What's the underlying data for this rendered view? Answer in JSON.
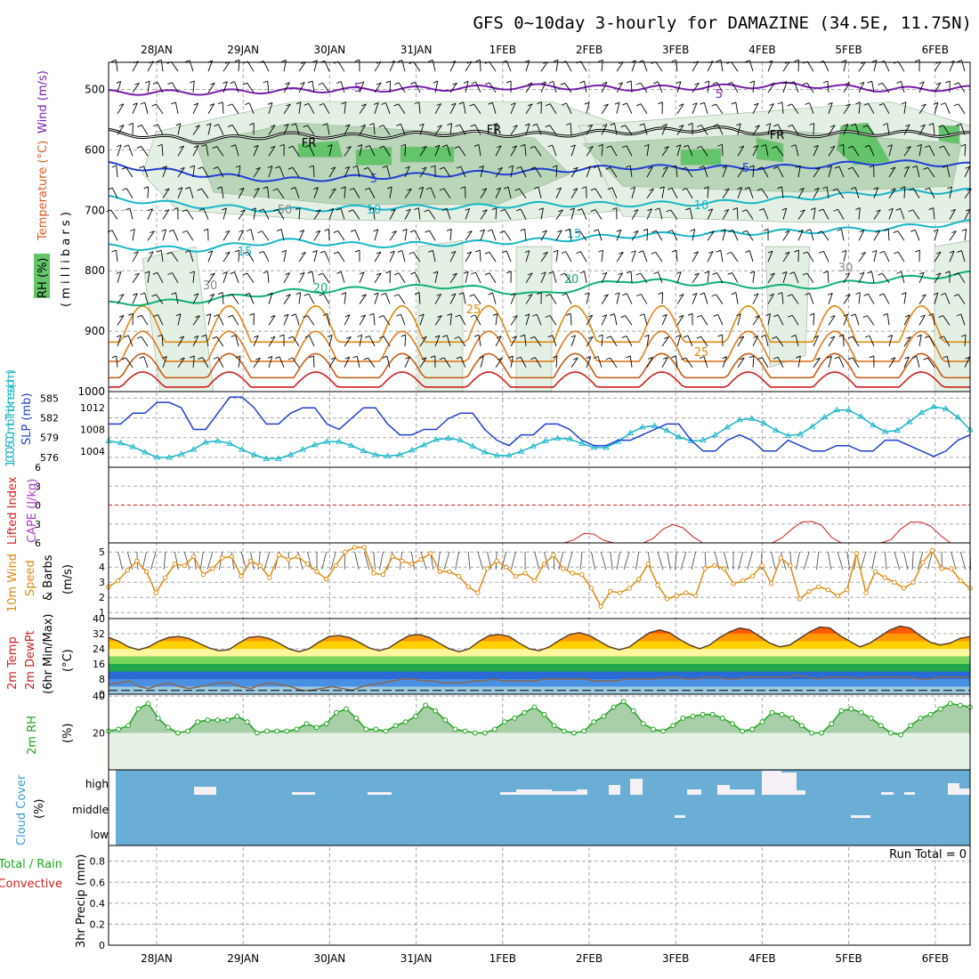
{
  "title": "GFS 0~10day 3-hourly for DAMAZINE (34.5E, 11.75N)",
  "dates": [
    "28JAN",
    "29JAN",
    "30JAN",
    "31JAN",
    "1FEB",
    "2FEB",
    "3FEB",
    "4FEB",
    "5FEB",
    "6FEB"
  ],
  "colors": {
    "purple": "#7a1fb0",
    "blue": "#1f3fd6",
    "cyan": "#17b6c9",
    "teal": "#10b07a",
    "orange": "#e08a10",
    "red": "#d21f1f",
    "rh_light": "#e3f0e3",
    "rh_mid": "#b9d6b9",
    "rh_dark": "#63c46a",
    "cloud": "#6aaed6",
    "grid": "#a8a8a8"
  },
  "labels": {
    "rh_axis": "RH (%)",
    "temp_axis": "Temperature (°C)",
    "wind_axis": "Wind (m/s)",
    "millibars": "( m i l l i b a r s )",
    "thickness": "1000-500mb Thickness (dm)",
    "slp": "SLP (mb)",
    "lifted": "Lifted Index",
    "cape": "CAPE (J/kg)",
    "wind10_a": "10m Wind",
    "wind10_b": "Speed",
    "wind10_c": "& Barbs",
    "wind10_u": "(m/s)",
    "temp2m_a": "2m Temp",
    "temp2m_b": "2m DewPt",
    "temp2m_c": "(6hr Min/Max)",
    "temp2m_u": "(°C)",
    "rh2m": "2m RH",
    "rh2m_u": "(%)",
    "cloud": "Cloud Cover",
    "cloud_u": "(%)",
    "precip_a": "Total / Rain",
    "precip_b": "Convective",
    "precip_c": "3hr Precip (mm)",
    "run_total": "Run Total = 0"
  },
  "chart_data": [
    {
      "type": "contour",
      "panel": "upper-air cross section",
      "ylabel": "millibars",
      "y_ticks": [
        500,
        600,
        700,
        800,
        900,
        1000
      ],
      "contour_labels": [
        "5",
        "FR",
        "5",
        "10",
        "15",
        "20",
        "25",
        "30",
        "50"
      ],
      "rh_shading_levels": [
        30,
        50,
        70,
        90
      ],
      "isotherms": [
        {
          "name": "-5",
          "color": "purple",
          "p": [
            505,
            505,
            502,
            500,
            498,
            495,
            498,
            496,
            492,
            500,
            498
          ]
        },
        {
          "name": "FR",
          "color": "black",
          "p": [
            570,
            585,
            575,
            578,
            572,
            575,
            570,
            565,
            575,
            572,
            575
          ]
        },
        {
          "name": "5",
          "color": "blue",
          "p": [
            624,
            640,
            650,
            645,
            640,
            635,
            628,
            630,
            628,
            620,
            625
          ]
        },
        {
          "name": "10",
          "color": "cyan",
          "p": [
            680,
            692,
            700,
            695,
            695,
            690,
            690,
            688,
            680,
            670,
            668
          ]
        },
        {
          "name": "15",
          "color": "cyan",
          "p": [
            760,
            765,
            750,
            758,
            755,
            750,
            742,
            738,
            735,
            730,
            720
          ]
        },
        {
          "name": "20",
          "color": "teal",
          "p": [
            855,
            850,
            835,
            830,
            825,
            840,
            815,
            822,
            828,
            815,
            805
          ]
        }
      ]
    },
    {
      "type": "line",
      "panel": "slp-thickness",
      "series": [
        {
          "name": "SLP (mb)",
          "axis": "right",
          "values": [
            1009,
            1009,
            1011,
            1011,
            1013,
            1013,
            1012,
            1008,
            1008,
            1011,
            1014,
            1014,
            1012,
            1009,
            1009,
            1011,
            1012,
            1012,
            1009,
            1008,
            1010,
            1012,
            1012,
            1009,
            1007,
            1007,
            1008,
            1008,
            1010,
            1011,
            1011,
            1008,
            1006,
            1005,
            1007,
            1007,
            1009,
            1009,
            1008,
            1006,
            1005,
            1005,
            1006,
            1006,
            1007,
            1008,
            1009,
            1009,
            1006,
            1004,
            1004,
            1006,
            1007,
            1006,
            1004,
            1004,
            1006,
            1005,
            1004,
            1004,
            1005,
            1005,
            1004,
            1004,
            1006,
            1006,
            1005,
            1004,
            1003,
            1004,
            1006,
            1007
          ]
        },
        {
          "name": "1000-500mb Thickness (dm)",
          "axis": "left",
          "values": [
            578.5,
            578.2,
            577.6,
            576.8,
            576,
            576,
            576.5,
            577.2,
            578.3,
            578.5,
            578.1,
            577.2,
            576.4,
            575.8,
            575.8,
            576.4,
            577.2,
            577.9,
            578.4,
            578.4,
            577.8,
            577,
            576.4,
            576.2,
            576.4,
            577.1,
            577.9,
            578.7,
            578.9,
            578.6,
            577.7,
            576.8,
            576.3,
            576.3,
            576.9,
            577.7,
            578.5,
            578.9,
            578.8,
            578.1,
            577.5,
            577.5,
            578.4,
            579.7,
            580.6,
            580.8,
            580.1,
            579.1,
            578.5,
            578.6,
            579.4,
            580.6,
            581.7,
            581.9,
            581.2,
            580.1,
            579.3,
            579.5,
            580.7,
            582.1,
            583.2,
            583.2,
            582.2,
            580.9,
            579.9,
            580.1,
            581.4,
            582.8,
            583.7,
            583.4,
            582.1,
            580.2
          ]
        }
      ],
      "y_ticks_left": [
        576,
        579,
        582,
        585
      ],
      "y_ticks_right": [
        1004,
        1008,
        1012
      ]
    },
    {
      "type": "line",
      "panel": "lifted index / cape",
      "y_ticks": [
        -6,
        -3,
        0,
        3,
        6
      ],
      "series": [
        {
          "name": "Lifted Index",
          "values": [
            6,
            6,
            6,
            6,
            6,
            6,
            6,
            6,
            6,
            6,
            6,
            6,
            6,
            6,
            6,
            6,
            6,
            6,
            6,
            6,
            6,
            6,
            6,
            6,
            6,
            6,
            6,
            6,
            6,
            6,
            6,
            6,
            6,
            6,
            6,
            6,
            6,
            6,
            6,
            6,
            6,
            6,
            6,
            6,
            6,
            6,
            6,
            5.5,
            4.5,
            4.6,
            5.6,
            6,
            6,
            6,
            6,
            5.3,
            3.8,
            3.1,
            3.6,
            5,
            6,
            6,
            6,
            6,
            6,
            6,
            6,
            6,
            5.2,
            3.8,
            2.7,
            2.6,
            3.2,
            5.1,
            6,
            6,
            6,
            6,
            6,
            5.5,
            3.8,
            2.7,
            2.7,
            3.3,
            4.8,
            6,
            6,
            6
          ]
        }
      ]
    },
    {
      "type": "line",
      "panel": "10m wind",
      "ylabel": "m/s",
      "y_ticks": [
        1,
        2,
        3,
        4,
        5
      ],
      "series": [
        {
          "name": "10m Wind Speed",
          "values": [
            2.7,
            3.1,
            3.8,
            4.4,
            3.7,
            2.3,
            3.3,
            4.2,
            4.1,
            4.7,
            3.5,
            3.9,
            4.6,
            4.7,
            3.4,
            4.4,
            4.1,
            3.3,
            4.8,
            4.5,
            4.7,
            4.2,
            3.7,
            3.2,
            4.1,
            5,
            5.3,
            5.3,
            3.6,
            3.5,
            4.7,
            4.4,
            4.2,
            4.5,
            4.9,
            3.7,
            3.7,
            3.4,
            2.7,
            2.3,
            3.9,
            4.4,
            4,
            3.4,
            3.6,
            3.1,
            4.2,
            4.8,
            3.9,
            3.6,
            3.5,
            2.6,
            1.4,
            2.4,
            2.3,
            2.6,
            3.2,
            4.2,
            2.8,
            1.9,
            2.1,
            2.3,
            2.1,
            3.9,
            4.1,
            3.9,
            2.9,
            3.1,
            3.4,
            4.1,
            2.9,
            4.6,
            4.1,
            1.9,
            2.4,
            2.7,
            2.5,
            2.1,
            2.5,
            4.9,
            2.3,
            3.7,
            3.3,
            3,
            2.6,
            3,
            4.3,
            5.1,
            3.9,
            3.9,
            3.1,
            2.6
          ]
        }
      ]
    },
    {
      "type": "area",
      "panel": "2m temperature",
      "ylabel": "°C",
      "y_ticks": [
        0,
        8,
        16,
        24,
        32,
        40
      ],
      "series": [
        {
          "name": "2m Temp",
          "values": [
            30,
            28,
            25,
            23.5,
            25,
            28,
            30,
            30.5,
            29.5,
            27,
            24.5,
            23,
            23.5,
            27,
            30,
            30.5,
            29.5,
            27,
            24,
            22.5,
            24,
            27.5,
            30.5,
            31,
            30,
            27.5,
            24.5,
            23,
            24.5,
            28,
            31,
            31.5,
            30,
            27,
            24,
            22.5,
            24,
            28,
            31,
            31.5,
            30.5,
            27,
            24,
            23,
            25,
            28.5,
            31.5,
            32.5,
            31,
            28,
            25,
            23.5,
            25,
            29,
            32.5,
            34,
            32.5,
            29,
            26,
            24,
            26,
            30,
            33,
            35,
            34,
            30.5,
            27,
            25,
            26,
            29.5,
            33,
            35.5,
            35,
            31,
            28,
            25,
            27,
            30.5,
            34,
            36,
            35,
            31,
            27.5,
            26,
            27,
            29.5,
            30.5
          ]
        },
        {
          "name": "2m DewPt",
          "values": [
            5,
            6,
            7,
            4,
            3,
            5,
            6,
            4,
            3,
            4,
            5,
            6,
            6,
            4,
            3,
            5,
            6,
            5,
            4,
            2,
            2,
            3,
            4,
            3,
            2,
            4,
            5,
            6,
            7,
            8,
            8,
            7,
            7,
            6,
            6,
            6,
            7,
            7,
            8,
            7,
            7,
            7,
            7,
            8,
            8,
            8,
            8,
            8,
            7,
            7,
            7,
            8,
            8,
            8,
            8,
            9,
            9,
            8,
            8,
            9,
            9,
            8,
            8,
            9,
            9,
            9,
            9,
            9,
            10,
            9,
            8,
            9,
            9,
            9,
            8,
            9,
            9,
            9,
            9,
            9,
            8,
            8,
            9,
            9,
            9,
            9
          ]
        }
      ]
    },
    {
      "type": "area",
      "panel": "2m rh",
      "ylabel": "%",
      "y_ticks": [
        20,
        40
      ],
      "series": [
        {
          "name": "2m RH",
          "values": [
            21,
            22,
            24,
            33,
            36,
            28,
            23,
            20,
            21,
            26,
            27,
            27,
            27,
            29,
            26,
            20,
            21,
            21,
            21,
            22,
            25,
            23,
            25,
            31,
            33,
            28,
            22,
            22,
            21,
            24,
            26,
            29,
            35,
            32,
            27,
            22,
            21,
            20,
            20,
            22,
            26,
            28,
            31,
            34,
            30,
            24,
            21,
            20,
            21,
            26,
            29,
            34,
            37,
            32,
            25,
            22,
            21,
            24,
            28,
            29,
            30,
            30,
            28,
            25,
            21,
            22,
            26,
            31,
            30,
            28,
            24,
            20,
            20,
            25,
            32,
            33,
            31,
            28,
            24,
            20,
            19,
            24,
            28,
            30,
            33,
            36,
            35,
            34
          ]
        }
      ]
    },
    {
      "type": "bar",
      "panel": "cloud cover",
      "y_ticks": [
        "low",
        "middle",
        "high"
      ],
      "series": [
        {
          "name": "High cloud gaps",
          "values": []
        }
      ]
    },
    {
      "type": "bar",
      "panel": "3hr precip",
      "ylabel": "mm",
      "y_ticks": [
        0,
        0.2,
        0.4,
        0.6,
        0.8
      ],
      "run_total": 0,
      "series": [
        {
          "name": "Total / Rain",
          "values": []
        }
      ]
    }
  ]
}
